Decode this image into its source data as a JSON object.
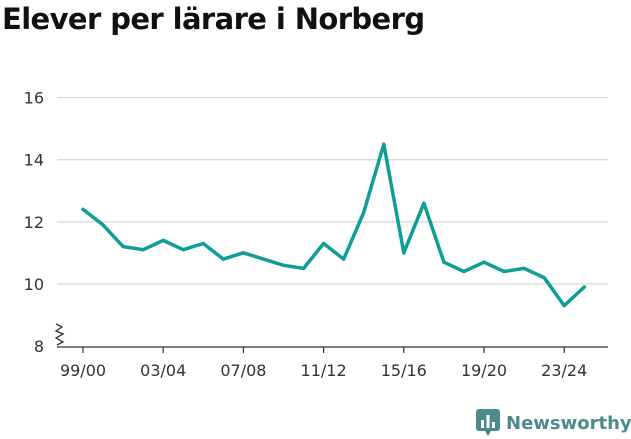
{
  "title": "Elever per lärare i Norberg",
  "brand": {
    "name": "Newsworthy",
    "logo_icon": "newsworthy-logo-icon",
    "color": "#4d8a8b"
  },
  "chart_data": {
    "type": "line",
    "title": "Elever per lärare i Norberg",
    "xlabel": "",
    "ylabel": "",
    "ylim": [
      8,
      16.5
    ],
    "yticks": [
      8,
      10,
      12,
      14,
      16
    ],
    "axis_break": true,
    "grid": true,
    "x_tick_labels": [
      "99/00",
      "03/04",
      "07/08",
      "11/12",
      "15/16",
      "19/20",
      "23/24"
    ],
    "x_tick_index": [
      0,
      4,
      8,
      12,
      16,
      20,
      24
    ],
    "line_color": "#0f9e96",
    "series": [
      {
        "x": [
          "99/00",
          "00/01",
          "01/02",
          "02/03",
          "03/04",
          "04/05",
          "05/06",
          "06/07",
          "07/08",
          "08/09",
          "09/10",
          "10/11",
          "11/12",
          "12/13",
          "13/14",
          "14/15",
          "15/16",
          "16/17",
          "17/18",
          "18/19",
          "19/20",
          "20/21",
          "21/22",
          "22/23",
          "23/24",
          "24/25"
        ],
        "values": [
          12.4,
          11.9,
          11.2,
          11.1,
          11.4,
          11.1,
          11.3,
          10.8,
          11.0,
          10.8,
          10.6,
          10.5,
          11.3,
          10.8,
          12.3,
          14.5,
          11.0,
          12.6,
          10.7,
          10.4,
          10.7,
          10.4,
          10.5,
          10.2,
          9.3,
          9.9
        ]
      }
    ]
  }
}
